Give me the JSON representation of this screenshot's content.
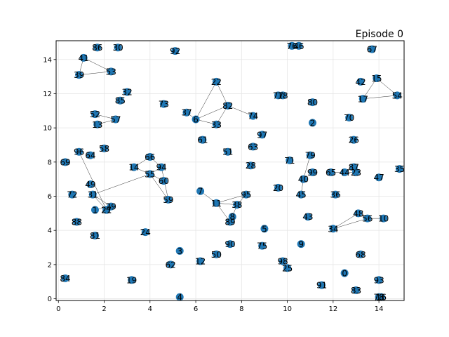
{
  "title": "Episode 0",
  "colors": {
    "node": "#1f77b4",
    "edge": "#000000",
    "grid": "#e6e6e6"
  },
  "chart_data": {
    "type": "scatter",
    "title": "Episode 0",
    "xlabel": "",
    "ylabel": "",
    "xlim": [
      -0.1,
      15.1
    ],
    "ylim": [
      -0.1,
      15.1
    ],
    "grid": true,
    "legend": "",
    "x_ticks": [
      "0",
      "2",
      "4",
      "6",
      "8",
      "10",
      "12",
      "14"
    ],
    "y_ticks": [
      "0",
      "2",
      "4",
      "6",
      "8",
      "10",
      "12",
      "14"
    ],
    "nodes": [
      {
        "id": "0",
        "x": 12.5,
        "y": 1.5
      },
      {
        "id": "1",
        "x": 1.6,
        "y": 5.2
      },
      {
        "id": "2",
        "x": 11.1,
        "y": 10.3
      },
      {
        "id": "3",
        "x": 5.3,
        "y": 2.8
      },
      {
        "id": "4",
        "x": 5.3,
        "y": 0.1
      },
      {
        "id": "5",
        "x": 9.0,
        "y": 4.1
      },
      {
        "id": "6",
        "x": 6.0,
        "y": 10.5
      },
      {
        "id": "7",
        "x": 6.2,
        "y": 6.3
      },
      {
        "id": "8",
        "x": 7.6,
        "y": 4.8
      },
      {
        "id": "9",
        "x": 10.6,
        "y": 3.2
      },
      {
        "id": "10",
        "x": 14.2,
        "y": 4.7
      },
      {
        "id": "11",
        "x": 6.9,
        "y": 5.6
      },
      {
        "id": "12",
        "x": 6.2,
        "y": 2.2
      },
      {
        "id": "13",
        "x": 1.7,
        "y": 10.2
      },
      {
        "id": "14",
        "x": 3.3,
        "y": 7.7
      },
      {
        "id": "15",
        "x": 13.9,
        "y": 12.9
      },
      {
        "id": "16",
        "x": 14.1,
        "y": 0.1
      },
      {
        "id": "17",
        "x": 13.3,
        "y": 11.7
      },
      {
        "id": "18",
        "x": 9.8,
        "y": 11.9
      },
      {
        "id": "19",
        "x": 3.2,
        "y": 1.1
      },
      {
        "id": "20",
        "x": 9.6,
        "y": 6.5
      },
      {
        "id": "21",
        "x": 2.1,
        "y": 5.2
      },
      {
        "id": "22",
        "x": 6.9,
        "y": 12.7
      },
      {
        "id": "23",
        "x": 13.0,
        "y": 7.4
      },
      {
        "id": "24",
        "x": 3.8,
        "y": 3.9
      },
      {
        "id": "25",
        "x": 10.0,
        "y": 1.8
      },
      {
        "id": "26",
        "x": 12.9,
        "y": 9.3
      },
      {
        "id": "27",
        "x": 2.1,
        "y": 5.2
      },
      {
        "id": "28",
        "x": 8.4,
        "y": 7.8
      },
      {
        "id": "29",
        "x": 2.3,
        "y": 5.4
      },
      {
        "id": "30",
        "x": 2.6,
        "y": 14.7
      },
      {
        "id": "31",
        "x": 1.5,
        "y": 6.1
      },
      {
        "id": "32",
        "x": 3.0,
        "y": 12.1
      },
      {
        "id": "33",
        "x": 6.9,
        "y": 10.2
      },
      {
        "id": "34",
        "x": 12.0,
        "y": 4.1
      },
      {
        "id": "35",
        "x": 14.9,
        "y": 7.6
      },
      {
        "id": "36",
        "x": 12.1,
        "y": 6.1
      },
      {
        "id": "37",
        "x": 5.6,
        "y": 10.9
      },
      {
        "id": "38",
        "x": 7.8,
        "y": 5.5
      },
      {
        "id": "39",
        "x": 0.9,
        "y": 13.1
      },
      {
        "id": "40",
        "x": 10.7,
        "y": 7.0
      },
      {
        "id": "41",
        "x": 1.1,
        "y": 14.1
      },
      {
        "id": "42",
        "x": 13.2,
        "y": 12.7
      },
      {
        "id": "43",
        "x": 10.9,
        "y": 4.8
      },
      {
        "id": "44",
        "x": 12.5,
        "y": 7.4
      },
      {
        "id": "45",
        "x": 10.6,
        "y": 6.1
      },
      {
        "id": "46",
        "x": 10.5,
        "y": 14.8
      },
      {
        "id": "47",
        "x": 14.0,
        "y": 7.1
      },
      {
        "id": "48",
        "x": 13.1,
        "y": 5.0
      },
      {
        "id": "49",
        "x": 1.4,
        "y": 6.7
      },
      {
        "id": "50",
        "x": 6.9,
        "y": 2.6
      },
      {
        "id": "51",
        "x": 7.4,
        "y": 8.6
      },
      {
        "id": "52",
        "x": 1.6,
        "y": 10.8
      },
      {
        "id": "53",
        "x": 2.3,
        "y": 13.3
      },
      {
        "id": "54",
        "x": 14.8,
        "y": 11.9
      },
      {
        "id": "55",
        "x": 4.0,
        "y": 7.3
      },
      {
        "id": "56",
        "x": 13.5,
        "y": 4.7
      },
      {
        "id": "57",
        "x": 2.5,
        "y": 10.5
      },
      {
        "id": "58",
        "x": 2.0,
        "y": 8.8
      },
      {
        "id": "59",
        "x": 4.8,
        "y": 5.8
      },
      {
        "id": "60",
        "x": 4.6,
        "y": 6.9
      },
      {
        "id": "61",
        "x": 6.3,
        "y": 9.3
      },
      {
        "id": "62",
        "x": 4.9,
        "y": 2.0
      },
      {
        "id": "63",
        "x": 8.5,
        "y": 8.9
      },
      {
        "id": "64",
        "x": 1.4,
        "y": 8.4
      },
      {
        "id": "65",
        "x": 11.9,
        "y": 7.4
      },
      {
        "id": "66",
        "x": 4.0,
        "y": 8.3
      },
      {
        "id": "67",
        "x": 13.7,
        "y": 14.6
      },
      {
        "id": "68",
        "x": 13.2,
        "y": 2.6
      },
      {
        "id": "69",
        "x": 0.3,
        "y": 8.0
      },
      {
        "id": "70",
        "x": 12.7,
        "y": 10.6
      },
      {
        "id": "71",
        "x": 10.1,
        "y": 8.1
      },
      {
        "id": "72",
        "x": 0.6,
        "y": 6.1
      },
      {
        "id": "73",
        "x": 4.6,
        "y": 11.4
      },
      {
        "id": "74",
        "x": 8.5,
        "y": 10.7
      },
      {
        "id": "75",
        "x": 8.9,
        "y": 3.1
      },
      {
        "id": "76",
        "x": 10.2,
        "y": 14.8
      },
      {
        "id": "77",
        "x": 9.6,
        "y": 11.9
      },
      {
        "id": "78",
        "x": 14.0,
        "y": 0.1
      },
      {
        "id": "79",
        "x": 11.0,
        "y": 8.4
      },
      {
        "id": "80",
        "x": 11.1,
        "y": 11.5
      },
      {
        "id": "81",
        "x": 1.6,
        "y": 3.7
      },
      {
        "id": "82",
        "x": 7.4,
        "y": 11.3
      },
      {
        "id": "83",
        "x": 13.0,
        "y": 0.5
      },
      {
        "id": "84",
        "x": 0.3,
        "y": 1.2
      },
      {
        "id": "85",
        "x": 2.7,
        "y": 11.6
      },
      {
        "id": "86",
        "x": 1.7,
        "y": 14.7
      },
      {
        "id": "87",
        "x": 12.9,
        "y": 7.7
      },
      {
        "id": "88",
        "x": 0.8,
        "y": 4.5
      },
      {
        "id": "89",
        "x": 7.5,
        "y": 4.5
      },
      {
        "id": "90",
        "x": 7.5,
        "y": 3.2
      },
      {
        "id": "91",
        "x": 11.5,
        "y": 0.8
      },
      {
        "id": "92",
        "x": 5.1,
        "y": 14.5
      },
      {
        "id": "93",
        "x": 14.0,
        "y": 1.1
      },
      {
        "id": "94",
        "x": 4.5,
        "y": 7.7
      },
      {
        "id": "95",
        "x": 8.2,
        "y": 6.1
      },
      {
        "id": "96",
        "x": 0.9,
        "y": 8.6
      },
      {
        "id": "97",
        "x": 8.9,
        "y": 9.6
      },
      {
        "id": "98",
        "x": 9.8,
        "y": 2.2
      },
      {
        "id": "99",
        "x": 11.1,
        "y": 7.4
      }
    ],
    "edges": [
      [
        "41",
        "39"
      ],
      [
        "41",
        "53"
      ],
      [
        "39",
        "53"
      ],
      [
        "52",
        "57"
      ],
      [
        "13",
        "57"
      ],
      [
        "6",
        "22"
      ],
      [
        "6",
        "37"
      ],
      [
        "6",
        "33"
      ],
      [
        "6",
        "82"
      ],
      [
        "33",
        "82"
      ],
      [
        "22",
        "82"
      ],
      [
        "82",
        "74"
      ],
      [
        "96",
        "27"
      ],
      [
        "31",
        "27"
      ],
      [
        "31",
        "29"
      ],
      [
        "1",
        "29"
      ],
      [
        "14",
        "66"
      ],
      [
        "14",
        "55"
      ],
      [
        "66",
        "94"
      ],
      [
        "55",
        "94"
      ],
      [
        "55",
        "59"
      ],
      [
        "55",
        "60"
      ],
      [
        "94",
        "59"
      ],
      [
        "55",
        "31"
      ],
      [
        "7",
        "11"
      ],
      [
        "11",
        "38"
      ],
      [
        "11",
        "95"
      ],
      [
        "38",
        "8"
      ],
      [
        "11",
        "89"
      ],
      [
        "95",
        "38"
      ],
      [
        "79",
        "40"
      ],
      [
        "40",
        "45"
      ],
      [
        "65",
        "44"
      ],
      [
        "44",
        "87"
      ],
      [
        "44",
        "23"
      ],
      [
        "34",
        "56"
      ],
      [
        "56",
        "10"
      ],
      [
        "34",
        "48"
      ],
      [
        "15",
        "17"
      ],
      [
        "15",
        "54"
      ],
      [
        "17",
        "54"
      ],
      [
        "77",
        "18"
      ],
      [
        "76",
        "46"
      ]
    ]
  }
}
